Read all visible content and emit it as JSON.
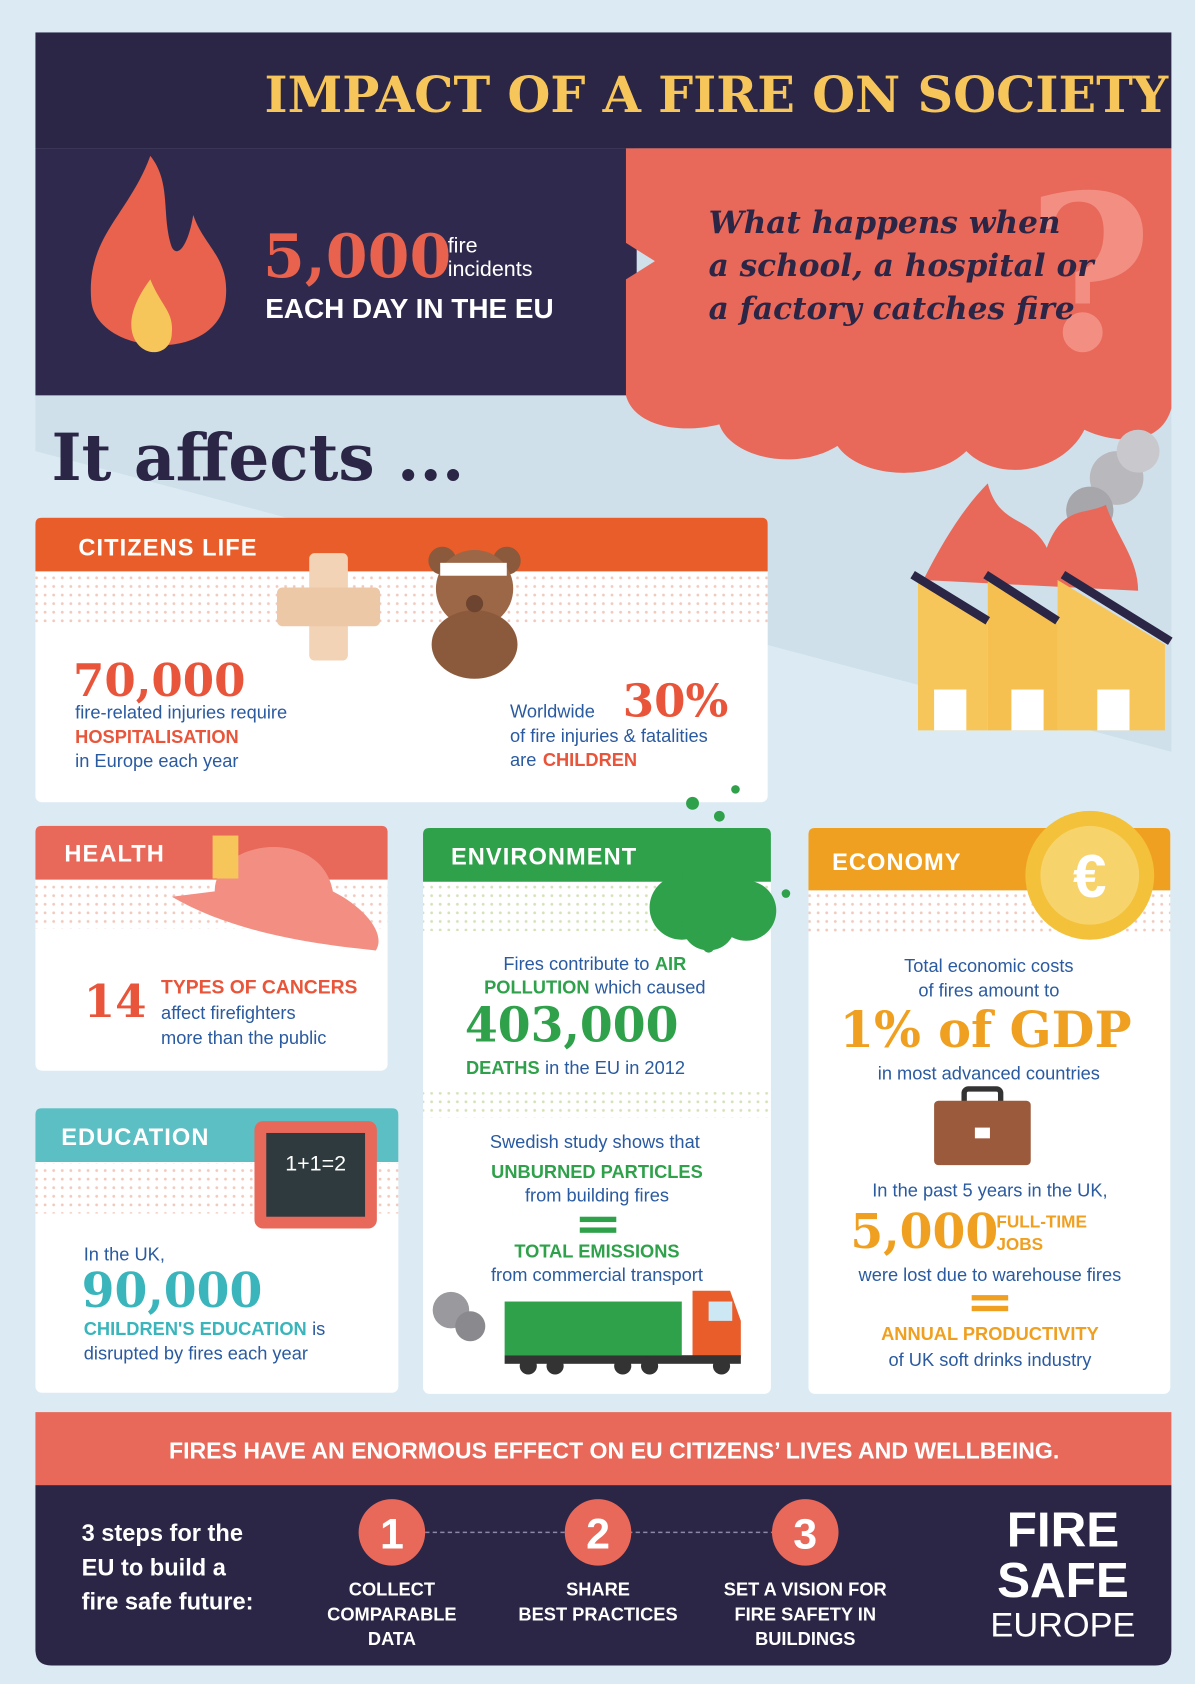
{
  "header": {
    "title": "IMPACT OF A FIRE ON SOCIETY"
  },
  "hero": {
    "number": "5,000",
    "unit_lines": [
      "fire",
      "incidents"
    ],
    "caption": "EACH DAY IN THE EU",
    "question": [
      "What happens when",
      "a school, a hospital or",
      "a factory catches fire"
    ]
  },
  "intro": "It affects ...",
  "citizens": {
    "title": "CITIZENS LIFE",
    "left": {
      "number": "70,000",
      "line1": "fire-related injuries require",
      "highlight": "HOSPITALISATION",
      "line3": "in Europe each year"
    },
    "right": {
      "prefix": "Worldwide",
      "number": "30%",
      "line2": "of fire injuries & fatalities",
      "line3": "are",
      "highlight": "CHILDREN"
    }
  },
  "health": {
    "title": "HEALTH",
    "number": "14",
    "highlight": "TYPES OF CANCERS",
    "line2": "affect firefighters",
    "line3": "more than the public"
  },
  "education": {
    "title": "EDUCATION",
    "board": "1+1=2",
    "line1": "In the UK,",
    "number": "90,000",
    "highlight": "CHILDREN'S EDUCATION",
    "tail": "is",
    "line3": "disrupted by fires each year"
  },
  "environment": {
    "title": "ENVIRONMENT",
    "line1": "Fires contribute to",
    "hl1": "AIR",
    "hl2": "POLLUTION",
    "line2": "which caused",
    "number": "403,000",
    "hl3": "DEATHS",
    "line3": "in the EU in 2012",
    "study": "Swedish study shows that",
    "hl4": "UNBURNED PARTICLES",
    "line5": "from building fires",
    "hl5": "TOTAL EMISSIONS",
    "line6": "from commercial transport"
  },
  "economy": {
    "title": "ECONOMY",
    "line1": "Total economic costs",
    "line2": "of fires amount to",
    "number": "1% of GDP",
    "line3": "in most advanced countries",
    "line4": "In the past 5 years in the UK,",
    "jobs_number": "5,000",
    "jobs_lines": [
      "FULL-TIME",
      "JOBS"
    ],
    "line5": "were lost due to warehouse fires",
    "hl": "ANNUAL PRODUCTIVITY",
    "line6": "of UK soft drinks industry"
  },
  "banner": "FIRES HAVE AN ENORMOUS EFFECT ON EU CITIZENS’ LIVES AND WELLBEING.",
  "steps": {
    "intro": [
      "3 steps for the",
      "EU to build a",
      "fire safe future:"
    ],
    "items": [
      {
        "number": "1",
        "lines": [
          "COLLECT",
          "COMPARABLE",
          "DATA"
        ]
      },
      {
        "number": "2",
        "lines": [
          "SHARE",
          "BEST PRACTICES"
        ]
      },
      {
        "number": "3",
        "lines": [
          "SET A VISION FOR",
          "FIRE SAFETY IN",
          "BUILDINGS"
        ]
      }
    ]
  },
  "logo": [
    "FIRE",
    "SAFE",
    "EUROPE"
  ]
}
